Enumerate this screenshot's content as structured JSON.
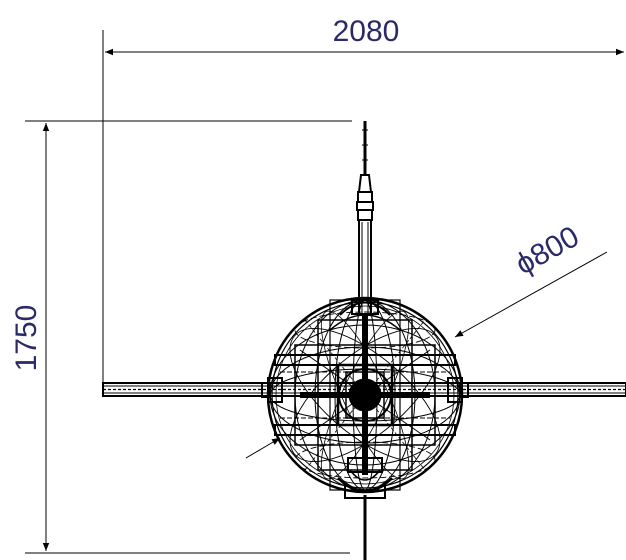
{
  "dimensions": {
    "width_label": "2080",
    "height_label": "1750",
    "diameter_label": "ϕ800"
  },
  "colors": {
    "line": "#000000",
    "dim_text": "#2a2a6a",
    "background": "#ffffff"
  }
}
